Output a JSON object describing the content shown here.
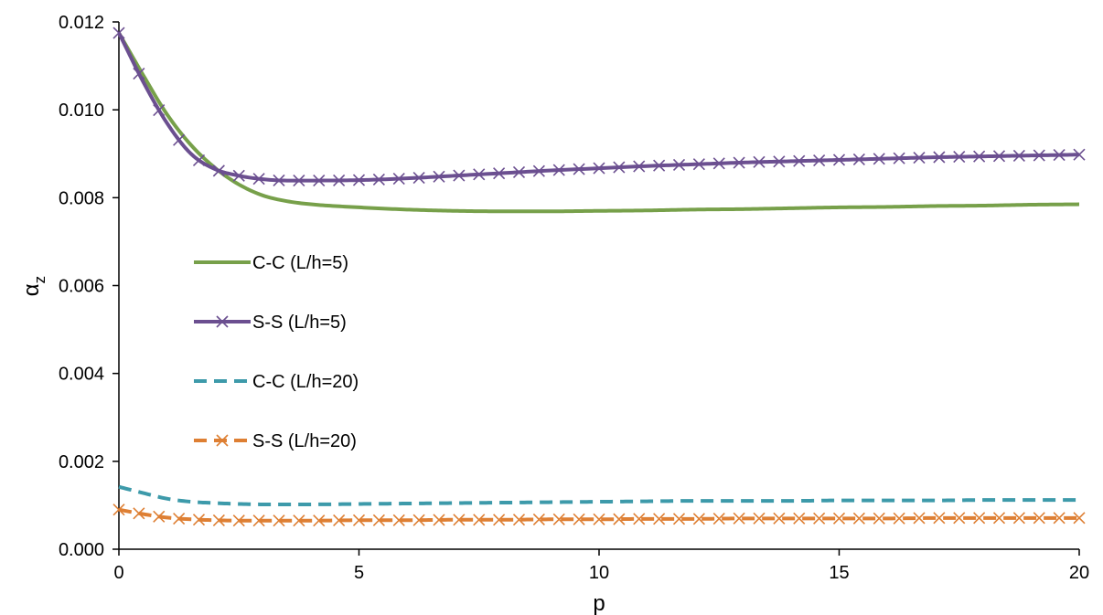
{
  "chart_data": {
    "type": "line",
    "title": "",
    "xlabel": "p",
    "ylabel": "α",
    "ylabel_sub": "z",
    "xlim": [
      0,
      20
    ],
    "ylim": [
      0,
      0.012
    ],
    "x_ticks": [
      0,
      5,
      10,
      15,
      20
    ],
    "x_tick_labels": [
      "0",
      "5",
      "10",
      "15",
      "20"
    ],
    "y_ticks": [
      0,
      0.002,
      0.004,
      0.006,
      0.008,
      0.01,
      0.012
    ],
    "y_tick_labels": [
      "0.000",
      "0.002",
      "0.004",
      "0.006",
      "0.008",
      "0.010",
      "0.012"
    ],
    "grid": false,
    "legend_position": "left-middle",
    "x": [
      0,
      0.5,
      1,
      1.5,
      2,
      2.5,
      3,
      3.5,
      4,
      5,
      6,
      7,
      8,
      9,
      10,
      11,
      12,
      13,
      14,
      15,
      16,
      17,
      18,
      19,
      20
    ],
    "series": [
      {
        "name": "C-C (L/h=5)",
        "color": "#77a04a",
        "dash": "solid",
        "marker": "none",
        "values": [
          0.01175,
          0.0108,
          0.0099,
          0.0092,
          0.00868,
          0.0083,
          0.00805,
          0.00792,
          0.00785,
          0.00778,
          0.00773,
          0.0077,
          0.00769,
          0.00769,
          0.0077,
          0.00771,
          0.00773,
          0.00774,
          0.00776,
          0.00778,
          0.00779,
          0.00781,
          0.00782,
          0.00784,
          0.00785
        ]
      },
      {
        "name": "S-S (L/h=5)",
        "color": "#6b4f90",
        "dash": "solid",
        "marker": "x",
        "values": [
          0.01175,
          0.01065,
          0.0097,
          0.009,
          0.00865,
          0.0085,
          0.00842,
          0.00839,
          0.00839,
          0.0084,
          0.00844,
          0.0085,
          0.00856,
          0.00862,
          0.00867,
          0.00872,
          0.00876,
          0.0088,
          0.00883,
          0.00886,
          0.00889,
          0.00892,
          0.00894,
          0.00896,
          0.00898
        ]
      },
      {
        "name": "C-C (L/h=20)",
        "color": "#3d9aaa",
        "dash": "dashed",
        "marker": "none",
        "values": [
          0.00142,
          0.00128,
          0.00115,
          0.00108,
          0.00105,
          0.00103,
          0.00102,
          0.00102,
          0.00102,
          0.00103,
          0.00104,
          0.00105,
          0.00106,
          0.00107,
          0.00108,
          0.00109,
          0.0011,
          0.0011,
          0.0011,
          0.00111,
          0.00111,
          0.00111,
          0.00112,
          0.00112,
          0.00112
        ]
      },
      {
        "name": "S-S (L/h=20)",
        "color": "#de7f33",
        "dash": "dashed",
        "marker": "x",
        "values": [
          0.0009,
          0.0008,
          0.00072,
          0.00068,
          0.00066,
          0.00065,
          0.00065,
          0.00065,
          0.00065,
          0.00066,
          0.00066,
          0.00067,
          0.00067,
          0.00068,
          0.00068,
          0.00069,
          0.00069,
          0.0007,
          0.0007,
          0.0007,
          0.0007,
          0.00071,
          0.00071,
          0.00071,
          0.00071
        ]
      }
    ]
  }
}
